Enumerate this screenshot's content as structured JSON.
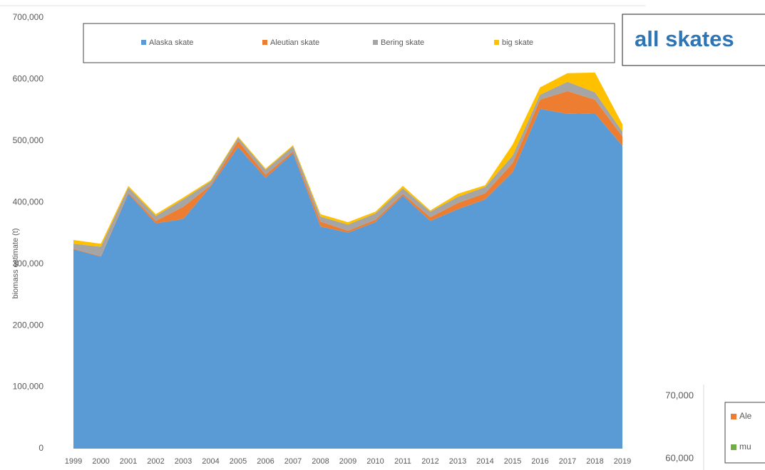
{
  "chart_data": [
    {
      "type": "stacked_area",
      "title": "all skates",
      "y_label": "biomass estimate (t)",
      "categories": [
        "1999",
        "2000",
        "2001",
        "2002",
        "2003",
        "2004",
        "2005",
        "2006",
        "2007",
        "2008",
        "2009",
        "2010",
        "2011",
        "2012",
        "2013",
        "2014",
        "2015",
        "2016",
        "2017",
        "2018",
        "2019"
      ],
      "series": [
        {
          "name": "Alaska skate",
          "color": "#5b9bd5",
          "values": [
            324000,
            312000,
            414000,
            366000,
            373000,
            426000,
            490000,
            440000,
            480000,
            361000,
            351000,
            368000,
            411000,
            370000,
            389000,
            405000,
            449000,
            552000,
            544000,
            545000,
            492000
          ]
        },
        {
          "name": "Aleutian skate",
          "color": "#ed7d31",
          "values": [
            1000,
            1000,
            2000,
            4000,
            20000,
            2000,
            10000,
            5000,
            3000,
            8000,
            3000,
            4000,
            3000,
            6000,
            10000,
            10000,
            15000,
            15000,
            37000,
            22000,
            15000
          ]
        },
        {
          "name": "Bering skate",
          "color": "#a5a5a5",
          "values": [
            8000,
            15000,
            8000,
            8000,
            12000,
            6000,
            5000,
            8000,
            8000,
            8000,
            10000,
            10000,
            9000,
            9000,
            10000,
            10000,
            12000,
            8000,
            15000,
            12000,
            8000
          ]
        },
        {
          "name": "big skate",
          "color": "#ffc000",
          "values": [
            6000,
            5000,
            3000,
            3000,
            3000,
            2000,
            2000,
            2000,
            2000,
            4000,
            4000,
            3000,
            4000,
            2000,
            5000,
            3000,
            18000,
            12000,
            14000,
            32000,
            12000
          ]
        }
      ],
      "ylim": [
        0,
        700000
      ],
      "yticks": [
        0,
        {
          "value": 100000,
          "label": "100,000"
        },
        {
          "value": 200000,
          "label": "200,000"
        },
        {
          "value": 300000,
          "label": "300,000"
        },
        {
          "value": 400000,
          "label": "400,000"
        },
        {
          "value": 500000,
          "label": "500,000"
        },
        {
          "value": 600000,
          "label": "600,000"
        },
        {
          "value": 700000,
          "label": "700,000"
        }
      ],
      "grid": false
    },
    {
      "type": "stacked_area",
      "series": [
        {
          "name": "Ale",
          "color": "#ed7d31",
          "values": []
        },
        {
          "name": "mu",
          "color": "#70ad47",
          "values": []
        }
      ],
      "ylim": [
        58200,
        71800
      ],
      "yticks": [
        {
          "value": 60000,
          "label": "60,000"
        },
        {
          "value": 70000,
          "label": "70,000"
        }
      ]
    }
  ]
}
